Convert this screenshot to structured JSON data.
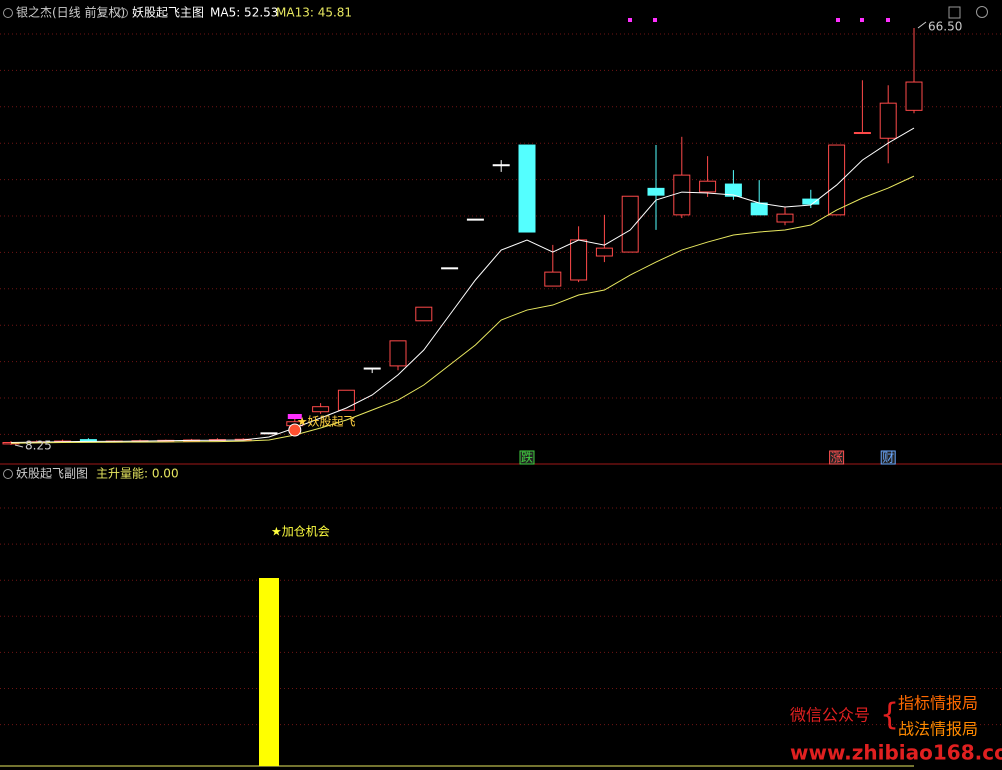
{
  "chart_data": [
    {
      "type": "candlestick",
      "title": "银之杰(日线 前复权)",
      "subtitle": "妖股起飞主图",
      "open": [
        8.4,
        8.6,
        8.7,
        9.0,
        8.7,
        8.8,
        8.85,
        8.9,
        8.95,
        9.0,
        9.95,
        10.95,
        12.9,
        13.1,
        19.0,
        19.3,
        25.6,
        33.0,
        39.8,
        47.4,
        50.15,
        30.45,
        31.3,
        34.65,
        35.2,
        44.1,
        40.4,
        43.6,
        44.7,
        42.05,
        39.4,
        42.6,
        40.4,
        51.8,
        51.1,
        55.0
      ],
      "high": [
        8.8,
        8.9,
        9.0,
        9.2,
        8.9,
        9.0,
        9.0,
        9.1,
        9.2,
        9.2,
        9.95,
        11.9,
        14.1,
        15.9,
        19.0,
        22.8,
        27.5,
        33.0,
        39.8,
        48.05,
        50.15,
        36.2,
        38.8,
        40.4,
        43.0,
        50.15,
        51.3,
        48.6,
        46.65,
        45.25,
        41.5,
        43.9,
        50.15,
        59.2,
        58.5,
        66.5
      ],
      "low": [
        8.25,
        8.5,
        8.6,
        8.6,
        8.6,
        8.7,
        8.8,
        8.8,
        8.9,
        8.9,
        9.95,
        10.95,
        12.6,
        13.1,
        18.3,
        18.7,
        25.6,
        33.0,
        39.8,
        46.4,
        38.0,
        30.45,
        31.0,
        33.8,
        35.2,
        38.3,
        39.95,
        42.9,
        42.5,
        40.4,
        38.95,
        41.35,
        40.4,
        51.8,
        47.6,
        54.6
      ],
      "close": [
        8.6,
        8.7,
        8.8,
        8.7,
        8.8,
        8.85,
        8.9,
        8.95,
        9.0,
        9.05,
        9.95,
        11.5,
        13.6,
        15.9,
        19.0,
        22.8,
        27.5,
        33.0,
        39.8,
        47.4,
        38.0,
        32.4,
        36.9,
        35.75,
        43.0,
        43.15,
        45.95,
        45.1,
        43.0,
        40.4,
        40.5,
        41.9,
        50.15,
        51.9,
        56.0,
        58.95
      ],
      "up_color": "#ff4a4a",
      "down_color": "#54ffff",
      "flat_color": "#ffffff",
      "series": [
        {
          "name": "MA5",
          "legend_label": "MA5: 52.53",
          "color": "#ffffff",
          "values": [
            8.6,
            8.65,
            8.7,
            8.75,
            8.75,
            8.8,
            8.85,
            8.9,
            8.92,
            8.95,
            9.37,
            10.63,
            12.02,
            13.42,
            15.24,
            18.04,
            21.52,
            26.41,
            31.3,
            35.48,
            36.88,
            35.2,
            36.88,
            36.18,
            38.28,
            42.47,
            43.58,
            43.45,
            43.17,
            42.05,
            41.5,
            41.77,
            44.56,
            48.05,
            50.43,
            52.53
          ]
        },
        {
          "name": "MA13",
          "legend_label": "MA13: 45.81",
          "color": "#e8e860",
          "values": [
            8.5,
            8.55,
            8.6,
            8.62,
            8.64,
            8.66,
            8.67,
            8.7,
            8.72,
            8.8,
            8.95,
            9.65,
            10.63,
            11.74,
            13.14,
            14.53,
            16.63,
            19.42,
            22.22,
            25.71,
            27.1,
            27.8,
            29.2,
            29.9,
            31.99,
            33.81,
            35.48,
            36.6,
            37.58,
            38.0,
            38.28,
            38.98,
            41.07,
            42.75,
            44.14,
            45.81
          ]
        }
      ],
      "ylim": [
        8.25,
        66.5
      ],
      "annotations": [
        {
          "text": "8.25",
          "value": 8.25,
          "index": 0
        },
        {
          "text": "66.50",
          "value": 66.5,
          "index": 35
        }
      ],
      "signals": [
        {
          "text": "★妖股起飞",
          "index": 11,
          "color": "#ffd040"
        },
        {
          "text": "跌",
          "index": 20,
          "color": "#40d040"
        },
        {
          "text": "涨",
          "index": 32,
          "color": "#ff5050"
        },
        {
          "text": "财",
          "index": 34,
          "color": "#6aa8ff"
        }
      ]
    },
    {
      "type": "bar",
      "title": "妖股起飞副图",
      "legend_label": "主升量能: 0.00",
      "color": "#ffff00",
      "values": [
        0,
        0,
        0,
        0,
        0,
        0,
        0,
        0,
        0,
        0,
        100,
        0,
        0,
        0,
        0,
        0,
        0,
        0,
        0,
        0,
        0,
        0,
        0,
        0,
        0,
        0,
        0,
        0,
        0,
        0,
        0,
        0,
        0,
        0,
        0,
        0
      ],
      "ylim": [
        0,
        100
      ],
      "signals": [
        {
          "text": "★加仓机会",
          "index": 10,
          "color": "#ffff40"
        }
      ]
    }
  ],
  "watermark": {
    "account": "微信公众号",
    "line1": "指标情报局",
    "line2": "战法情报局",
    "url": "www.zhibiao168.com"
  }
}
